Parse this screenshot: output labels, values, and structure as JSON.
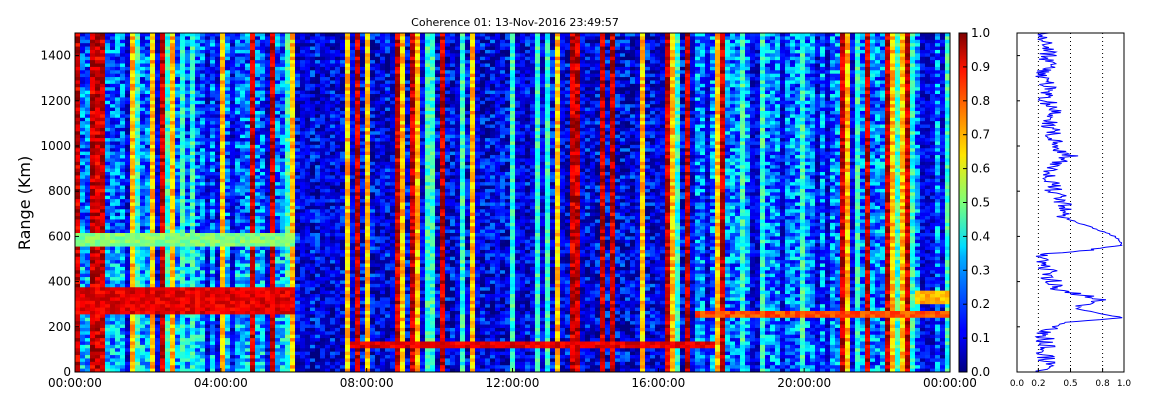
{
  "chart_data": [
    {
      "type": "heatmap",
      "title": "Coherence 01: 13-Nov-2016 23:49:57",
      "ylabel": "Range (Km)",
      "xlabel": "",
      "x_ticks": [
        "00:00:00",
        "04:00:00",
        "08:00:00",
        "12:00:00",
        "16:00:00",
        "20:00:00",
        "00:00:00"
      ],
      "y_ticks": [
        0,
        200,
        400,
        600,
        800,
        1000,
        1200,
        1400
      ],
      "ylim": [
        0,
        1500
      ],
      "xlim_hours": [
        0,
        24
      ],
      "colorbar": {
        "ticks": [
          "0.0",
          "0.1",
          "0.2",
          "0.3",
          "0.4",
          "0.5",
          "0.6",
          "0.7",
          "0.8",
          "0.9",
          "1.0"
        ],
        "range": [
          0.0,
          1.0
        ],
        "colormap": "jet"
      },
      "features": [
        {
          "range_km": [
            260,
            380
          ],
          "time_hours": [
            0,
            6
          ],
          "coherence": 0.9
        },
        {
          "range_km": [
            560,
            620
          ],
          "time_hours": [
            0,
            6
          ],
          "coherence": 0.5
        },
        {
          "range_km": [
            100,
            140
          ],
          "time_hours": [
            7.5,
            17.5
          ],
          "coherence": 0.9
        },
        {
          "range_km": [
            240,
            270
          ],
          "time_hours": [
            17,
            24
          ],
          "coherence": 0.8
        },
        {
          "range_km": [
            300,
            360
          ],
          "time_hours": [
            23,
            24
          ],
          "coherence": 0.7
        }
      ]
    },
    {
      "type": "line",
      "xlabel": "",
      "ylabel": "",
      "x_ticks": [
        "0.0",
        "0.2",
        "0.5",
        "0.8",
        "1.0"
      ],
      "xlim": [
        0,
        1
      ],
      "ylim": [
        0,
        1500
      ],
      "grid_x": [
        0.2,
        0.5,
        0.8
      ],
      "series": [
        {
          "color": "#0000ff",
          "range_km": [
            0,
            40,
            100,
            180,
            220,
            240,
            280,
            320,
            360,
            400,
            430,
            450,
            480,
            520,
            560,
            600,
            640,
            680,
            740,
            800,
            860,
            900,
            960,
            1000,
            1060,
            1100,
            1150,
            1200,
            1260,
            1300,
            1350,
            1400,
            1450,
            1490
          ],
          "values": [
            0.25,
            0.28,
            0.27,
            0.26,
            0.45,
            0.99,
            0.55,
            0.8,
            0.4,
            0.35,
            0.25,
            0.3,
            0.2,
            0.28,
            0.98,
            0.92,
            0.7,
            0.45,
            0.42,
            0.35,
            0.3,
            0.28,
            0.5,
            0.35,
            0.32,
            0.3,
            0.35,
            0.28,
            0.3,
            0.25,
            0.28,
            0.3,
            0.25,
            0.28
          ]
        }
      ]
    }
  ]
}
